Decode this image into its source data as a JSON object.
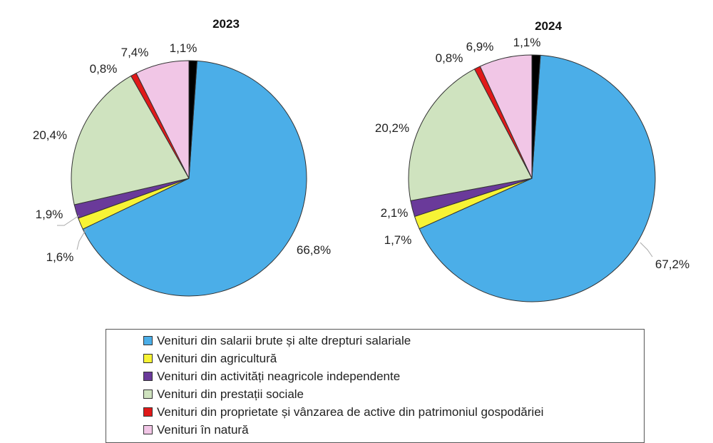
{
  "legend_entries": [
    {
      "label": "Venituri din salarii brute și alte drepturi salariale",
      "color": "#4BAEE8"
    },
    {
      "label": "Venituri din agricultură",
      "color": "#F7F335"
    },
    {
      "label": "Venituri din activități neagricole independente",
      "color": "#6A3A9A"
    },
    {
      "label": "Venituri din prestații sociale",
      "color": "#CFE3BF"
    },
    {
      "label": "Venituri din proprietate și vânzarea de active din patrimoniul gospodăriei",
      "color": "#E01919"
    },
    {
      "label": "Venituri în natură",
      "color": "#F1C6E6"
    },
    {
      "label": "",
      "color": "#000000"
    }
  ],
  "chart_data": [
    {
      "type": "pie",
      "title": "2023",
      "categories": [
        "Venituri din salarii brute și alte drepturi salariale",
        "Venituri din agricultură",
        "Venituri din activități neagricole independente",
        "Venituri din prestații sociale",
        "Venituri din proprietate și vânzarea de active din patrimoniul gospodăriei",
        "Venituri în natură",
        ""
      ],
      "values": [
        66.8,
        1.6,
        1.9,
        20.4,
        0.8,
        7.4,
        1.1
      ],
      "labels": [
        "66,8%",
        "1,6%",
        "1,9%",
        "20,4%",
        "0,8%",
        "7,4%",
        "1,1%"
      ],
      "colors": [
        "#4BAEE8",
        "#F7F335",
        "#6A3A9A",
        "#CFE3BF",
        "#E01919",
        "#F1C6E6",
        "#000000"
      ],
      "legend_position": "bottom"
    },
    {
      "type": "pie",
      "title": "2024",
      "categories": [
        "Venituri din salarii brute și alte drepturi salariale",
        "Venituri din agricultură",
        "Venituri din activități neagricole independente",
        "Venituri din prestații sociale",
        "Venituri din proprietate și vânzarea de active din patrimoniul gospodăriei",
        "Venituri în natură",
        ""
      ],
      "values": [
        67.2,
        1.7,
        2.1,
        20.2,
        0.8,
        6.9,
        1.1
      ],
      "labels": [
        "67,2%",
        "1,7%",
        "2,1%",
        "20,2%",
        "0,8%",
        "6,9%",
        "1,1%"
      ],
      "colors": [
        "#4BAEE8",
        "#F7F335",
        "#6A3A9A",
        "#CFE3BF",
        "#E01919",
        "#F1C6E6",
        "#000000"
      ],
      "legend_position": "bottom"
    }
  ]
}
